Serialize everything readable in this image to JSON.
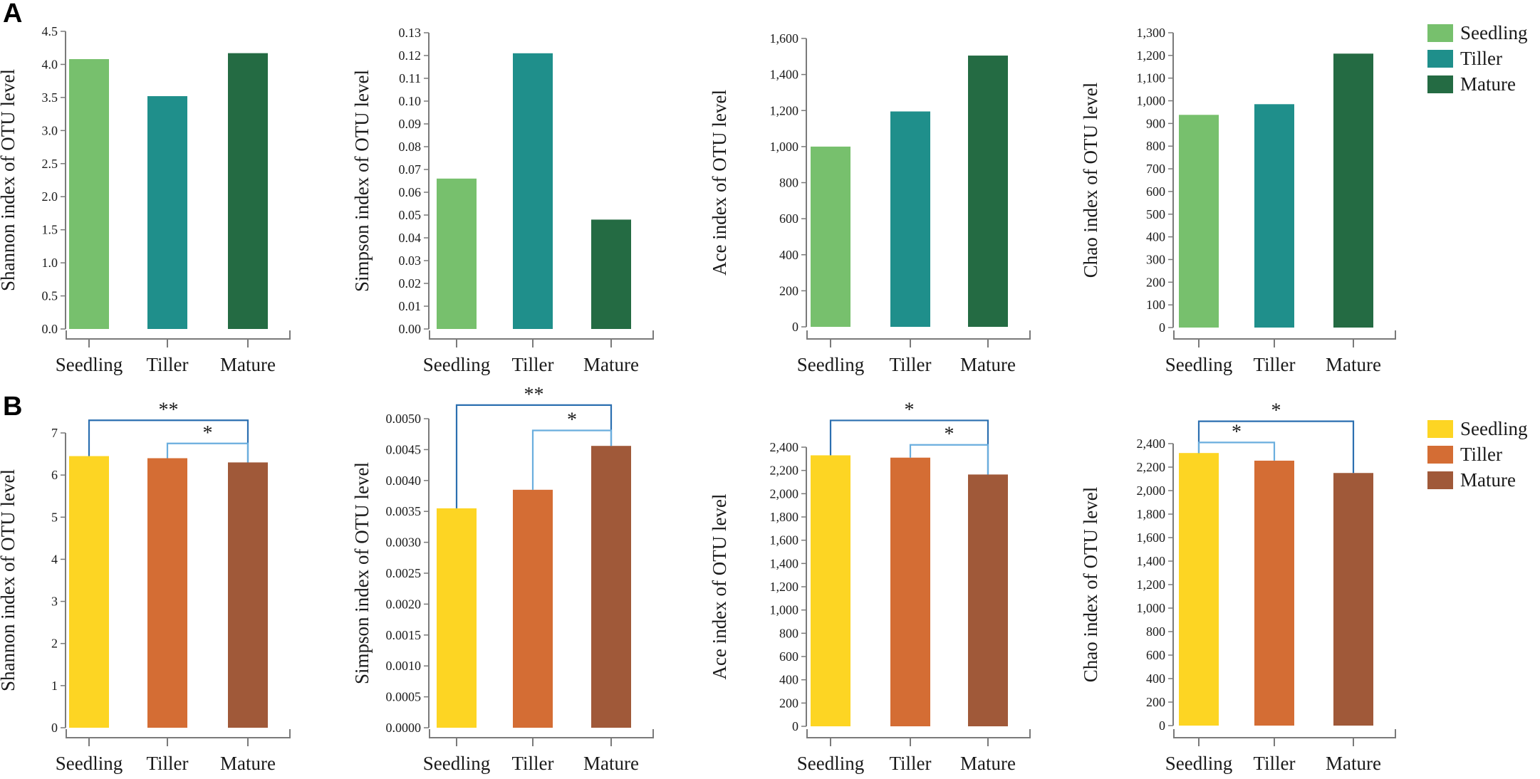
{
  "panels": [
    {
      "label": "A",
      "legend": [
        {
          "name": "Seedling",
          "color": "#77c06d"
        },
        {
          "name": "Tiller",
          "color": "#1f8f8b"
        },
        {
          "name": "Mature",
          "color": "#246b43"
        }
      ]
    },
    {
      "label": "B",
      "legend": [
        {
          "name": "Seedling",
          "color": "#fdd523"
        },
        {
          "name": "Tiller",
          "color": "#d46d34"
        },
        {
          "name": "Mature",
          "color": "#a05939"
        }
      ]
    }
  ],
  "chart_data": [
    {
      "id": "A-shannon",
      "panel": "A",
      "type": "bar",
      "categories": [
        "Seedling",
        "Tiller",
        "Mature"
      ],
      "values": [
        4.08,
        3.52,
        4.17
      ],
      "colors": [
        "#77c06d",
        "#1f8f8b",
        "#246b43"
      ],
      "ylabel": "Shannon index of OTU level",
      "ylim": [
        0,
        4.5
      ],
      "yticks": [
        0,
        0.5,
        1.0,
        1.5,
        2.0,
        2.5,
        3.0,
        3.5,
        4.0,
        4.5
      ],
      "ytick_labels": [
        "0.0",
        "0.5",
        "1.0",
        "1.5",
        "2.0",
        "2.5",
        "3.0",
        "3.5",
        "4.0",
        "4.5"
      ],
      "significance": []
    },
    {
      "id": "A-simpson",
      "panel": "A",
      "type": "bar",
      "categories": [
        "Seedling",
        "Tiller",
        "Mature"
      ],
      "values": [
        0.066,
        0.121,
        0.048
      ],
      "colors": [
        "#77c06d",
        "#1f8f8b",
        "#246b43"
      ],
      "ylabel": "Simpson index of OTU level",
      "ylim": [
        0,
        0.13
      ],
      "yticks": [
        0,
        0.01,
        0.02,
        0.03,
        0.04,
        0.05,
        0.06,
        0.07,
        0.08,
        0.09,
        0.1,
        0.11,
        0.12,
        0.13
      ],
      "ytick_labels": [
        "0.00",
        "0.01",
        "0.02",
        "0.03",
        "0.04",
        "0.05",
        "0.06",
        "0.07",
        "0.08",
        "0.09",
        "0.10",
        "0.11",
        "0.12",
        "0.13"
      ],
      "significance": []
    },
    {
      "id": "A-ace",
      "panel": "A",
      "type": "bar",
      "categories": [
        "Seedling",
        "Tiller",
        "Mature"
      ],
      "values": [
        1000,
        1195,
        1505
      ],
      "colors": [
        "#77c06d",
        "#1f8f8b",
        "#246b43"
      ],
      "ylabel": "Ace index of OTU level",
      "ylim": [
        0,
        1600
      ],
      "yticks": [
        0,
        200,
        400,
        600,
        800,
        1000,
        1200,
        1400,
        1600
      ],
      "ytick_labels": [
        "0",
        "200",
        "400",
        "600",
        "800",
        "1,000",
        "1,200",
        "1,400",
        "1,600"
      ],
      "significance": []
    },
    {
      "id": "A-chao",
      "panel": "A",
      "type": "bar",
      "categories": [
        "Seedling",
        "Tiller",
        "Mature"
      ],
      "values": [
        938,
        985,
        1208
      ],
      "colors": [
        "#77c06d",
        "#1f8f8b",
        "#246b43"
      ],
      "ylabel": "Chao index of OTU level",
      "ylim": [
        0,
        1300
      ],
      "yticks": [
        0,
        100,
        200,
        300,
        400,
        500,
        600,
        700,
        800,
        900,
        1000,
        1100,
        1200,
        1300
      ],
      "ytick_labels": [
        "0",
        "100",
        "200",
        "300",
        "400",
        "500",
        "600",
        "700",
        "800",
        "900",
        "1,000",
        "1,100",
        "1,200",
        "1,300"
      ],
      "significance": []
    },
    {
      "id": "B-shannon",
      "panel": "B",
      "type": "bar",
      "categories": [
        "Seedling",
        "Tiller",
        "Mature"
      ],
      "values": [
        6.45,
        6.4,
        6.3
      ],
      "colors": [
        "#fdd523",
        "#d46d34",
        "#a05939"
      ],
      "ylabel": "Shannon index of OTU level",
      "ylim": [
        0,
        7
      ],
      "yticks": [
        0,
        1,
        2,
        3,
        4,
        5,
        6,
        7
      ],
      "ytick_labels": [
        "0",
        "1",
        "2",
        "3",
        "4",
        "5",
        "6",
        "7"
      ],
      "significance": [
        {
          "from": 0,
          "to": 2,
          "label": "**",
          "level": 7.3,
          "color": "#2b6fb0"
        },
        {
          "from": 1,
          "to": 2,
          "label": "*",
          "level": 6.75,
          "color": "#6aaede"
        }
      ]
    },
    {
      "id": "B-simpson",
      "panel": "B",
      "type": "bar",
      "categories": [
        "Seedling",
        "Tiller",
        "Mature"
      ],
      "values": [
        0.00355,
        0.00385,
        0.00456
      ],
      "colors": [
        "#fdd523",
        "#d46d34",
        "#a05939"
      ],
      "ylabel": "Simpson index of OTU level",
      "ylim": [
        0,
        0.005
      ],
      "yticks": [
        0,
        0.0005,
        0.001,
        0.0015,
        0.002,
        0.0025,
        0.003,
        0.0035,
        0.004,
        0.0045,
        0.005
      ],
      "ytick_labels": [
        "0.0000",
        "0.0005",
        "0.0010",
        "0.0015",
        "0.0020",
        "0.0025",
        "0.0030",
        "0.0035",
        "0.0040",
        "0.0045",
        "0.0050"
      ],
      "significance": [
        {
          "from": 0,
          "to": 2,
          "label": "**",
          "level": 0.00522,
          "color": "#2b6fb0"
        },
        {
          "from": 1,
          "to": 2,
          "label": "*",
          "level": 0.00481,
          "color": "#6aaede"
        }
      ]
    },
    {
      "id": "B-ace",
      "panel": "B",
      "type": "bar",
      "categories": [
        "Seedling",
        "Tiller",
        "Mature"
      ],
      "values": [
        2330,
        2310,
        2165
      ],
      "colors": [
        "#fdd523",
        "#d46d34",
        "#a05939"
      ],
      "ylabel": "Ace index of OTU level",
      "ylim": [
        0,
        2400
      ],
      "yticks": [
        0,
        200,
        400,
        600,
        800,
        1000,
        1200,
        1400,
        1600,
        1800,
        2000,
        2200,
        2400
      ],
      "ytick_labels": [
        "0",
        "200",
        "400",
        "600",
        "800",
        "1,000",
        "1,200",
        "1,400",
        "1,600",
        "1,800",
        "2,000",
        "2,200",
        "2,400"
      ],
      "significance": [
        {
          "from": 0,
          "to": 2,
          "label": "*",
          "level": 2630,
          "color": "#2b6fb0"
        },
        {
          "from": 1,
          "to": 2,
          "label": "*",
          "level": 2420,
          "color": "#6aaede"
        }
      ]
    },
    {
      "id": "B-chao",
      "panel": "B",
      "type": "bar",
      "categories": [
        "Seedling",
        "Tiller",
        "Mature"
      ],
      "values": [
        2320,
        2255,
        2150
      ],
      "colors": [
        "#fdd523",
        "#d46d34",
        "#a05939"
      ],
      "ylabel": "Chao index of OTU level",
      "ylim": [
        0,
        2400
      ],
      "yticks": [
        0,
        200,
        400,
        600,
        800,
        1000,
        1200,
        1400,
        1600,
        1800,
        2000,
        2200,
        2400
      ],
      "ytick_labels": [
        "0",
        "200",
        "400",
        "600",
        "800",
        "1,000",
        "1,200",
        "1,400",
        "1,600",
        "1,800",
        "2,000",
        "2,200",
        "2,400"
      ],
      "significance": [
        {
          "from": 0,
          "to": 2,
          "label": "*",
          "level": 2590,
          "color": "#2b6fb0"
        },
        {
          "from": 0,
          "to": 1,
          "label": "*",
          "level": 2410,
          "color": "#6aaede"
        }
      ]
    }
  ]
}
